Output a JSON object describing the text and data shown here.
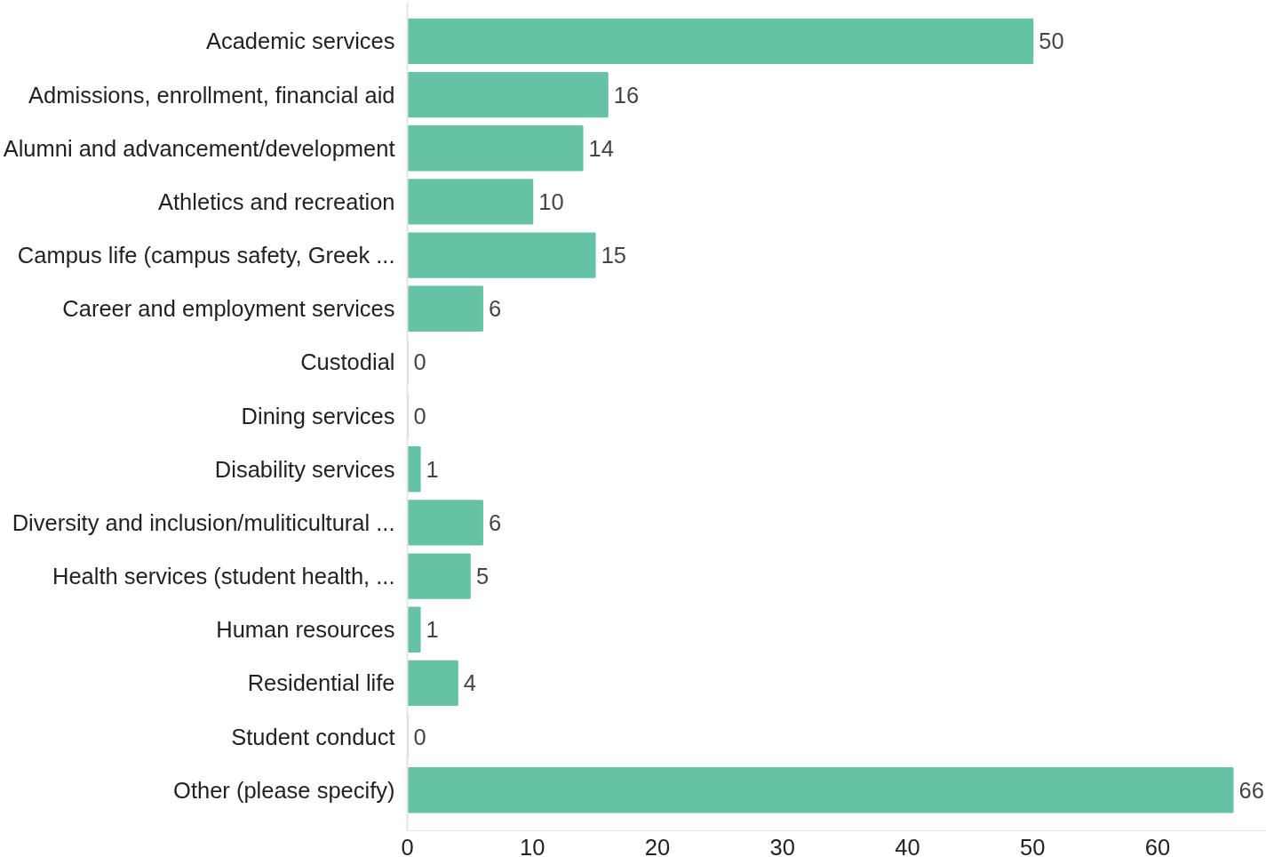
{
  "chart_data": {
    "type": "bar",
    "orientation": "horizontal",
    "data_labels": true,
    "categories": [
      "Academic services",
      "Admissions, enrollment, financial aid",
      "Alumni and advancement/development",
      "Athletics and recreation",
      "Campus life (campus safety, Greek ...",
      "Career and employment services",
      "Custodial",
      "Dining services",
      "Disability services",
      "Diversity and inclusion/muliticultural ...",
      "Health services (student health, ...",
      "Human resources",
      "Residential life",
      "Student conduct",
      "Other (please specify)"
    ],
    "values": [
      50,
      16,
      14,
      10,
      15,
      6,
      0,
      0,
      1,
      6,
      5,
      1,
      4,
      0,
      66
    ],
    "color": "#66c2a5",
    "xlim": [
      0,
      68.7
    ],
    "xticks": [
      0,
      10,
      20,
      30,
      40,
      50,
      60
    ]
  }
}
